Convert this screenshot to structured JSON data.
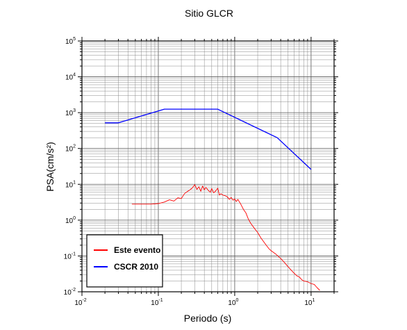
{
  "chart_data": {
    "type": "line",
    "title": "Sitio GLCR",
    "xlabel": "Periodo (s)",
    "ylabel": "PSA(cm/s²)",
    "x_scale": "log",
    "y_scale": "log",
    "xlim": [
      0.01,
      20
    ],
    "ylim": [
      0.01,
      100000
    ],
    "grid": true,
    "legend_position": "bottom-left",
    "x_ticks": [
      {
        "base": "10",
        "exp": "-2"
      },
      {
        "base": "10",
        "exp": "-1"
      },
      {
        "base": "10",
        "exp": "0"
      },
      {
        "base": "10",
        "exp": "1"
      }
    ],
    "y_ticks": [
      {
        "base": "10",
        "exp": "-2"
      },
      {
        "base": "10",
        "exp": "-1"
      },
      {
        "base": "10",
        "exp": "0"
      },
      {
        "base": "10",
        "exp": "1"
      },
      {
        "base": "10",
        "exp": "2"
      },
      {
        "base": "10",
        "exp": "3"
      },
      {
        "base": "10",
        "exp": "4"
      },
      {
        "base": "10",
        "exp": "5"
      }
    ],
    "series": [
      {
        "name": "Este evento",
        "color": "#ff0000",
        "x": [
          0.045,
          0.06,
          0.08,
          0.1,
          0.12,
          0.14,
          0.16,
          0.18,
          0.2,
          0.22,
          0.24,
          0.26,
          0.28,
          0.3,
          0.32,
          0.34,
          0.36,
          0.38,
          0.4,
          0.42,
          0.45,
          0.48,
          0.5,
          0.53,
          0.56,
          0.6,
          0.63,
          0.66,
          0.7,
          0.75,
          0.8,
          0.85,
          0.9,
          0.95,
          1.0,
          1.05,
          1.1,
          1.2,
          1.3,
          1.4,
          1.5,
          1.6,
          1.8,
          2.0,
          2.2,
          2.5,
          2.8,
          3.0,
          3.5,
          4.0,
          4.5,
          5.0,
          5.5,
          6.0,
          6.5,
          7.0,
          7.5,
          8.0,
          9.0,
          10.0,
          11.0,
          12.0,
          13.0
        ],
        "values": [
          2.8,
          2.8,
          2.8,
          2.9,
          3.2,
          3.7,
          3.4,
          4.2,
          4.0,
          5.5,
          6.3,
          7.0,
          8.0,
          9.8,
          7.2,
          8.5,
          6.4,
          9.0,
          7.0,
          8.2,
          6.8,
          6.0,
          7.6,
          5.8,
          6.4,
          7.8,
          5.0,
          5.5,
          5.0,
          4.8,
          4.5,
          3.8,
          4.3,
          3.6,
          3.9,
          3.3,
          3.8,
          2.8,
          2.0,
          1.6,
          1.1,
          0.85,
          0.6,
          0.45,
          0.32,
          0.22,
          0.16,
          0.14,
          0.11,
          0.085,
          0.065,
          0.05,
          0.04,
          0.033,
          0.028,
          0.026,
          0.022,
          0.02,
          0.019,
          0.017,
          0.016,
          0.013,
          0.011
        ]
      },
      {
        "name": "CSCR 2010",
        "color": "#0000ff",
        "x": [
          0.02,
          0.03,
          0.12,
          0.6,
          3.6,
          10.0
        ],
        "values": [
          520,
          520,
          1250,
          1250,
          200,
          26
        ]
      }
    ]
  }
}
